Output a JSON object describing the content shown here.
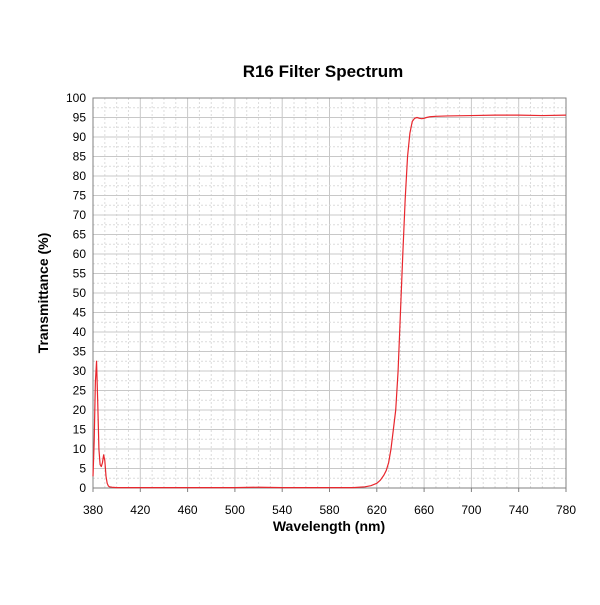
{
  "chart_data": {
    "type": "line",
    "title": "R16 Filter Spectrum",
    "xlabel": "Wavelength (nm)",
    "ylabel": "Transmittance (%)",
    "xlim": [
      380,
      780
    ],
    "ylim": [
      0,
      100
    ],
    "x_ticks": [
      "380",
      "420",
      "460",
      "500",
      "540",
      "580",
      "620",
      "660",
      "700",
      "740",
      "780"
    ],
    "y_ticks": [
      "0",
      "5",
      "10",
      "15",
      "20",
      "25",
      "30",
      "35",
      "40",
      "45",
      "50",
      "55",
      "60",
      "65",
      "70",
      "75",
      "80",
      "85",
      "90",
      "95",
      "100"
    ],
    "grid": true,
    "legend": "none",
    "series": [
      {
        "color": "#e8262d",
        "x": [
          380,
          381,
          382,
          383,
          384,
          385,
          386,
          387,
          388,
          389,
          390,
          391,
          392,
          393,
          394,
          396,
          400,
          420,
          440,
          460,
          480,
          500,
          520,
          540,
          560,
          580,
          600,
          610,
          615,
          620,
          623,
          626,
          628,
          630,
          632,
          634,
          636,
          638,
          640,
          642,
          644,
          646,
          648,
          650,
          652,
          654,
          656,
          658,
          660,
          662,
          665,
          670,
          680,
          700,
          720,
          740,
          760,
          780
        ],
        "y": [
          3,
          12,
          27,
          32.5,
          22,
          10,
          6,
          5.5,
          6.5,
          8.5,
          7,
          3,
          1.2,
          0.5,
          0.3,
          0.2,
          0.1,
          0.1,
          0.1,
          0.1,
          0.1,
          0.1,
          0.2,
          0.1,
          0.1,
          0.1,
          0.1,
          0.3,
          0.6,
          1.2,
          2,
          3.3,
          4.5,
          6.5,
          10,
          15,
          20,
          30,
          45,
          60,
          74,
          85,
          91,
          94,
          94.8,
          95,
          94.8,
          94.7,
          94.8,
          95,
          95.2,
          95.3,
          95.4,
          95.5,
          95.6,
          95.6,
          95.5,
          95.6
        ]
      }
    ]
  }
}
